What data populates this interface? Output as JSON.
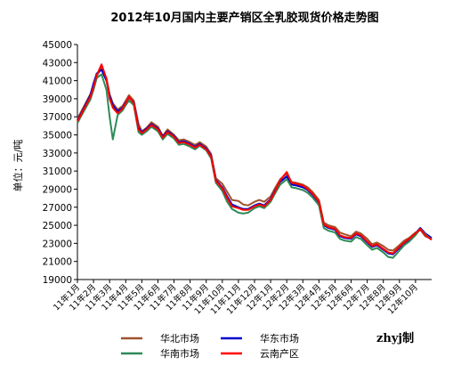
{
  "chart_data": {
    "type": "line",
    "title": "2012年10月国内主要产销区全乳胶现货价格走势图",
    "ylabel": "单位：元/吨",
    "ylim": [
      19000,
      45000
    ],
    "yticks": [
      19000,
      21000,
      23000,
      25000,
      27000,
      29000,
      31000,
      33000,
      35000,
      37000,
      39000,
      41000,
      43000,
      45000
    ],
    "x_categories": [
      "11年1月",
      "11年2月",
      "11年3月",
      "11年4月",
      "11年5月",
      "11年6月",
      "11年7月",
      "11年8月",
      "11年9月",
      "11年10月",
      "11年11月",
      "11年12月",
      "12年1月",
      "12年2月",
      "12年3月",
      "12年4月",
      "12年5月",
      "12年6月",
      "12年7月",
      "12年8月",
      "12年9月",
      "12年10月"
    ],
    "x_category_positions": [
      0,
      1,
      2,
      3,
      4,
      5,
      6,
      7,
      8,
      9,
      10,
      11,
      12,
      13,
      14,
      15,
      16,
      17,
      18,
      19,
      20,
      21
    ],
    "x_range": [
      0,
      22
    ],
    "grid": false,
    "legend_position": "bottom",
    "series": [
      {
        "name": "华北市场",
        "color": "#a0522d",
        "x": [
          0,
          0.3,
          0.8,
          1.0,
          1.2,
          1.5,
          1.8,
          2.0,
          2.2,
          2.5,
          2.8,
          3.0,
          3.2,
          3.5,
          3.8,
          4.0,
          4.3,
          4.6,
          5.0,
          5.3,
          5.6,
          6.0,
          6.3,
          6.6,
          7.0,
          7.3,
          7.6,
          8.0,
          8.3,
          8.6,
          9.0,
          9.3,
          9.6,
          10.0,
          10.3,
          10.6,
          11.0,
          11.3,
          11.6,
          12.0,
          12.3,
          12.6,
          13.0,
          13.3,
          13.6,
          14.0,
          14.3,
          14.6,
          15.0,
          15.3,
          15.6,
          16.0,
          16.3,
          16.6,
          17.0,
          17.3,
          17.6,
          18.0,
          18.3,
          18.6,
          19.0,
          19.3,
          19.6,
          20.0,
          20.3,
          20.6,
          21.0,
          21.3,
          21.6,
          22.0
        ],
        "values": [
          36800,
          37800,
          39500,
          40500,
          41500,
          42500,
          41300,
          39500,
          38500,
          37800,
          38200,
          38800,
          39400,
          38800,
          36200,
          35400,
          35800,
          36400,
          35900,
          34900,
          35600,
          35000,
          34400,
          34500,
          34200,
          33900,
          34200,
          33700,
          32900,
          30200,
          29600,
          28700,
          27800,
          27700,
          27300,
          27200,
          27600,
          27800,
          27600,
          28200,
          29200,
          30100,
          30700,
          29800,
          29700,
          29500,
          29200,
          28700,
          27800,
          25300,
          25000,
          24800,
          24200,
          24000,
          23800,
          24300,
          24100,
          23500,
          22900,
          23100,
          22700,
          22300,
          22200,
          22800,
          23300,
          23600,
          24200,
          24500,
          23800,
          23500
        ]
      },
      {
        "name": "华东市场",
        "color": "#0000cc",
        "x": [
          0,
          0.3,
          0.8,
          1.0,
          1.2,
          1.5,
          1.8,
          2.0,
          2.2,
          2.5,
          2.8,
          3.0,
          3.2,
          3.5,
          3.8,
          4.0,
          4.3,
          4.6,
          5.0,
          5.3,
          5.6,
          6.0,
          6.3,
          6.6,
          7.0,
          7.3,
          7.6,
          8.0,
          8.3,
          8.6,
          9.0,
          9.3,
          9.6,
          10.0,
          10.3,
          10.6,
          11.0,
          11.3,
          11.6,
          12.0,
          12.3,
          12.6,
          13.0,
          13.3,
          13.6,
          14.0,
          14.3,
          14.6,
          15.0,
          15.3,
          15.6,
          16.0,
          16.3,
          16.6,
          17.0,
          17.3,
          17.6,
          18.0,
          18.3,
          18.6,
          19.0,
          19.3,
          19.6,
          20.0,
          20.3,
          20.6,
          21.0,
          21.3,
          21.6,
          22.0
        ],
        "values": [
          36600,
          37600,
          39400,
          40700,
          41800,
          42200,
          41000,
          39300,
          38300,
          37600,
          38000,
          38600,
          39100,
          38600,
          35800,
          35300,
          35700,
          36200,
          35700,
          34800,
          35400,
          34900,
          34200,
          34300,
          34000,
          33700,
          34000,
          33500,
          32700,
          30000,
          29200,
          28200,
          27300,
          27000,
          26800,
          26800,
          27200,
          27400,
          27200,
          27900,
          28900,
          29800,
          30400,
          29500,
          29400,
          29200,
          28900,
          28400,
          27500,
          25000,
          24700,
          24500,
          23800,
          23600,
          23500,
          24000,
          23800,
          23100,
          22600,
          22800,
          22300,
          21900,
          21800,
          22500,
          23000,
          23400,
          24100,
          24700,
          24100,
          23600
        ]
      },
      {
        "name": "华南市场",
        "color": "#2e8b57",
        "x": [
          0,
          0.3,
          0.8,
          1.0,
          1.2,
          1.5,
          1.8,
          2.0,
          2.2,
          2.5,
          2.8,
          3.0,
          3.2,
          3.5,
          3.8,
          4.0,
          4.3,
          4.6,
          5.0,
          5.3,
          5.6,
          6.0,
          6.3,
          6.6,
          7.0,
          7.3,
          7.6,
          8.0,
          8.3,
          8.6,
          9.0,
          9.3,
          9.6,
          10.0,
          10.3,
          10.6,
          11.0,
          11.3,
          11.6,
          12.0,
          12.3,
          12.6,
          13.0,
          13.3,
          13.6,
          14.0,
          14.3,
          14.6,
          15.0,
          15.3,
          15.6,
          16.0,
          16.3,
          16.6,
          17.0,
          17.3,
          17.6,
          18.0,
          18.3,
          18.6,
          19.0,
          19.3,
          19.6,
          20.0,
          20.3,
          20.6,
          21.0,
          21.3,
          21.6,
          22.0
        ],
        "values": [
          36300,
          37300,
          38900,
          40000,
          41300,
          41700,
          40000,
          37000,
          34500,
          37200,
          37700,
          38300,
          38800,
          38300,
          35300,
          35000,
          35400,
          35900,
          35400,
          34500,
          35100,
          34600,
          33900,
          34000,
          33700,
          33400,
          33800,
          33300,
          32400,
          29700,
          28800,
          27600,
          26800,
          26400,
          26300,
          26400,
          26900,
          27100,
          26900,
          27600,
          28600,
          29500,
          30100,
          29200,
          29100,
          28900,
          28600,
          28100,
          27200,
          24700,
          24400,
          24200,
          23500,
          23300,
          23200,
          23700,
          23500,
          22800,
          22300,
          22500,
          22000,
          21500,
          21400,
          22200,
          22800,
          23200,
          23900,
          24600,
          24000,
          23400
        ]
      },
      {
        "name": "云南产区",
        "color": "#ff0000",
        "x": [
          0,
          0.3,
          0.8,
          1.0,
          1.2,
          1.5,
          1.8,
          2.0,
          2.2,
          2.5,
          2.8,
          3.0,
          3.2,
          3.5,
          3.8,
          4.0,
          4.3,
          4.6,
          5.0,
          5.3,
          5.6,
          6.0,
          6.3,
          6.6,
          7.0,
          7.3,
          7.6,
          8.0,
          8.3,
          8.6,
          9.0,
          9.3,
          9.6,
          10.0,
          10.3,
          10.6,
          11.0,
          11.3,
          11.6,
          12.0,
          12.3,
          12.6,
          13.0,
          13.3,
          13.6,
          14.0,
          14.3,
          14.6,
          15.0,
          15.3,
          15.6,
          16.0,
          16.3,
          16.6,
          17.0,
          17.3,
          17.6,
          18.0,
          18.3,
          18.6,
          19.0,
          19.3,
          19.6,
          20.0,
          20.3,
          20.6,
          21.0,
          21.3,
          21.6,
          22.0
        ],
        "values": [
          36500,
          37500,
          39200,
          40300,
          41600,
          42800,
          41200,
          39000,
          38000,
          37400,
          37900,
          38500,
          39200,
          38500,
          35600,
          35200,
          35600,
          36100,
          35600,
          34700,
          35300,
          34800,
          34100,
          34200,
          33900,
          33600,
          33900,
          33400,
          32600,
          29900,
          29100,
          28000,
          27100,
          26900,
          26700,
          26700,
          27100,
          27300,
          27100,
          27800,
          28800,
          30000,
          30900,
          29700,
          29600,
          29400,
          29000,
          28500,
          27600,
          25100,
          24800,
          24600,
          23900,
          23700,
          23600,
          24100,
          23900,
          23200,
          22700,
          22900,
          22400,
          22000,
          21900,
          22600,
          23100,
          23500,
          24100,
          24600,
          23900,
          23400
        ]
      }
    ]
  },
  "credit": "zhyj制"
}
